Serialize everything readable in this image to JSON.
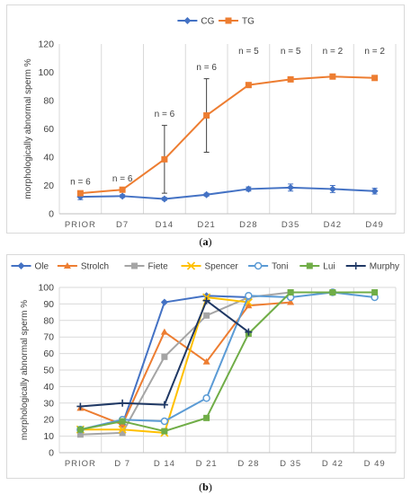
{
  "captions": {
    "a": "a",
    "b": "b"
  },
  "chart_data": [
    {
      "type": "line",
      "ylabel": "morphologically abnormal sperm %",
      "ylim": [
        0,
        120
      ],
      "yticks": [
        0,
        20,
        40,
        60,
        80,
        100,
        120
      ],
      "grid": "vertical",
      "legend_position": "top",
      "categories": [
        "PRIOR",
        "D7",
        "D14",
        "D21",
        "D28",
        "D35",
        "D42",
        "D49"
      ],
      "series": [
        {
          "name": "CG",
          "color": "#4472c4",
          "marker": "diamond",
          "values": [
            12,
            12.5,
            10.5,
            13.5,
            17.5,
            18.5,
            17.5,
            16
          ],
          "error": [
            2,
            1,
            1,
            1,
            1.5,
            2.5,
            2.5,
            2
          ]
        },
        {
          "name": "TG",
          "color": "#ed7d31",
          "marker": "square",
          "values": [
            14.5,
            17,
            38.5,
            69.5,
            91,
            95,
            97,
            96
          ],
          "error": [
            null,
            null,
            24,
            26,
            null,
            null,
            null,
            null
          ]
        }
      ],
      "annotations": [
        {
          "category": "PRIOR",
          "text": "n = 6"
        },
        {
          "category": "D7",
          "text": "n = 6"
        },
        {
          "category": "D14",
          "text": "n = 6"
        },
        {
          "category": "D21",
          "text": "n = 6"
        },
        {
          "category": "D28",
          "text": "n = 5"
        },
        {
          "category": "D35",
          "text": "n = 5"
        },
        {
          "category": "D42",
          "text": "n = 2"
        },
        {
          "category": "D49",
          "text": "n = 2"
        }
      ]
    },
    {
      "type": "line",
      "ylabel": "morphologically abnormal sperm %",
      "ylim": [
        0,
        100
      ],
      "yticks": [
        0,
        10,
        20,
        30,
        40,
        50,
        60,
        70,
        80,
        90,
        100
      ],
      "grid": "both",
      "legend_position": "top",
      "categories": [
        "PRIOR",
        "D 7",
        "D 14",
        "D 21",
        "D 28",
        "D 35",
        "D 42",
        "D 49"
      ],
      "series": [
        {
          "name": "Ole",
          "color": "#4472c4",
          "marker": "diamond",
          "values": [
            null,
            17,
            91,
            95,
            94,
            null,
            null,
            null
          ]
        },
        {
          "name": "Strolch",
          "color": "#ed7d31",
          "marker": "triangle",
          "values": [
            27,
            17,
            73,
            55,
            89,
            91,
            null,
            null
          ]
        },
        {
          "name": "Fiete",
          "color": "#a5a5a5",
          "marker": "square",
          "values": [
            11,
            12,
            58,
            83,
            94,
            97,
            null,
            null
          ]
        },
        {
          "name": "Spencer",
          "color": "#ffc000",
          "marker": "x",
          "values": [
            14,
            14,
            12,
            94,
            91,
            null,
            null,
            null
          ]
        },
        {
          "name": "Toni",
          "color": "#5b9bd5",
          "marker": "circle",
          "values": [
            14,
            20,
            19,
            33,
            95,
            94,
            97,
            94
          ]
        },
        {
          "name": "Lui",
          "color": "#70ad47",
          "marker": "square",
          "values": [
            14,
            19,
            13,
            21,
            72,
            97,
            97,
            97
          ]
        },
        {
          "name": "Murphy",
          "color": "#1f3864",
          "marker": "plus",
          "values": [
            28,
            30,
            29,
            92,
            73,
            null,
            null,
            null
          ]
        }
      ]
    }
  ]
}
